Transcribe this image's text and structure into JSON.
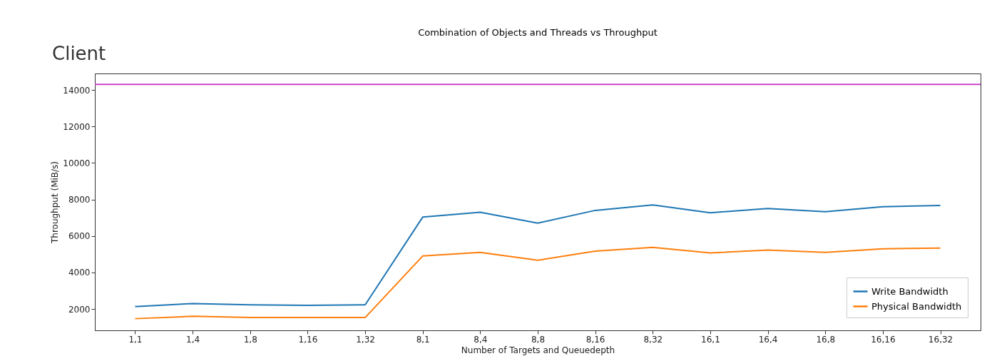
{
  "chart_data": {
    "type": "line",
    "title": "Combination of Objects and Threads vs Throughput",
    "xlabel": "Number of Targets and Queuedepth",
    "ylabel": "Throughput (MiB/s)",
    "annotations": [
      "Client"
    ],
    "categories": [
      "1,1",
      "1,4",
      "1,8",
      "1,16",
      "1,32",
      "8,1",
      "8,4",
      "8,8",
      "8,16",
      "8,32",
      "16,1",
      "16,4",
      "16,8",
      "16,16",
      "16,32"
    ],
    "series": [
      {
        "name": "Write Bandwidth",
        "color": "#1f77b4",
        "values": [
          2130,
          2300,
          2230,
          2200,
          2230,
          7030,
          7300,
          6700,
          7400,
          7700,
          7270,
          7500,
          7330,
          7600,
          7670
        ]
      },
      {
        "name": "Physical Bandwidth",
        "color": "#ff7f0e",
        "values": [
          1470,
          1600,
          1530,
          1530,
          1530,
          4900,
          5100,
          4670,
          5170,
          5370,
          5070,
          5230,
          5100,
          5300,
          5330
        ]
      }
    ],
    "ref_lines": [
      {
        "axis": "y",
        "value": 14300,
        "color": "#cc44cc"
      }
    ],
    "ylim": [
      830,
      14900
    ],
    "yticks": [
      2000,
      4000,
      6000,
      8000,
      10000,
      12000,
      14000
    ],
    "grid": false,
    "legend": "bottom right",
    "marker": "none",
    "line_style": "solid"
  }
}
